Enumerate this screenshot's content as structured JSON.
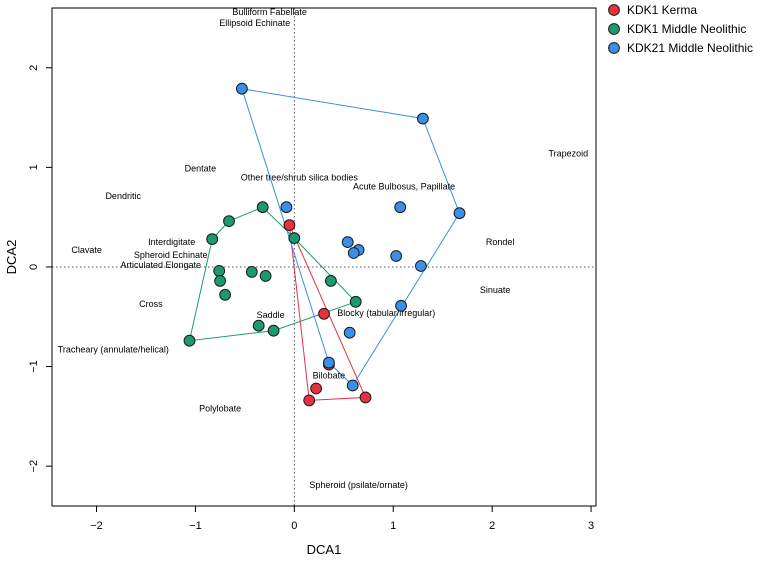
{
  "chart_data": {
    "type": "scatter",
    "title": "",
    "xlabel": "DCA1",
    "ylabel": "DCA2",
    "xlim": [
      -2.45,
      3.05
    ],
    "ylim": [
      -2.4,
      2.6
    ],
    "xticks": [
      -2,
      -1,
      0,
      1,
      2,
      3
    ],
    "yticks": [
      -2,
      -1,
      0,
      1,
      2
    ],
    "x_tick_labels": [
      "−2",
      "−1",
      "0",
      "1",
      "2",
      "3"
    ],
    "y_tick_labels": [
      "−2",
      "−1",
      "0",
      "1",
      "2"
    ],
    "reference_lines": {
      "x": 0,
      "y": 0
    },
    "legend_position": "top-right",
    "series": [
      {
        "name": "KDK1 Kerma",
        "color": "#E8303F",
        "points": [
          [
            -0.05,
            0.42
          ],
          [
            0.3,
            -0.47
          ],
          [
            0.35,
            -0.98
          ],
          [
            0.22,
            -1.22
          ],
          [
            0.15,
            -1.34
          ],
          [
            0.72,
            -1.31
          ]
        ],
        "hull": [
          [
            -0.05,
            0.42
          ],
          [
            0.72,
            -1.31
          ],
          [
            0.15,
            -1.34
          ]
        ]
      },
      {
        "name": "KDK1 Middle Neolithic",
        "color": "#1A9A70",
        "points": [
          [
            -0.32,
            0.6
          ],
          [
            -0.66,
            0.46
          ],
          [
            -0.83,
            0.28
          ],
          [
            0.0,
            0.29
          ],
          [
            -0.76,
            -0.04
          ],
          [
            -0.43,
            -0.05
          ],
          [
            -0.29,
            -0.09
          ],
          [
            -0.75,
            -0.14
          ],
          [
            -0.7,
            -0.28
          ],
          [
            0.37,
            -0.14
          ],
          [
            0.62,
            -0.35
          ],
          [
            -0.36,
            -0.59
          ],
          [
            -0.21,
            -0.64
          ],
          [
            -1.06,
            -0.74
          ]
        ],
        "hull": [
          [
            -0.66,
            0.46
          ],
          [
            -0.32,
            0.6
          ],
          [
            0.0,
            0.29
          ],
          [
            0.62,
            -0.35
          ],
          [
            -0.21,
            -0.64
          ],
          [
            -1.06,
            -0.74
          ],
          [
            -0.83,
            0.28
          ]
        ]
      },
      {
        "name": "KDK21 Middle Neolithic",
        "color": "#3A8FE8",
        "points": [
          [
            -0.53,
            1.79
          ],
          [
            1.3,
            1.49
          ],
          [
            -0.08,
            0.6
          ],
          [
            1.07,
            0.6
          ],
          [
            1.67,
            0.54
          ],
          [
            0.54,
            0.25
          ],
          [
            0.65,
            0.17
          ],
          [
            0.6,
            0.14
          ],
          [
            1.03,
            0.11
          ],
          [
            1.28,
            0.01
          ],
          [
            1.08,
            -0.39
          ],
          [
            0.56,
            -0.66
          ],
          [
            0.35,
            -0.96
          ],
          [
            0.59,
            -1.19
          ]
        ],
        "hull": [
          [
            -0.53,
            1.79
          ],
          [
            1.3,
            1.49
          ],
          [
            1.67,
            0.54
          ],
          [
            0.59,
            -1.19
          ],
          [
            0.35,
            -0.96
          ]
        ]
      }
    ],
    "annotations": [
      {
        "text": "Bulliform Fabellate",
        "x": -0.25,
        "y": 2.56
      },
      {
        "text": "Ellipsoid Echinate",
        "x": -0.4,
        "y": 2.45
      },
      {
        "text": "Trapezoid",
        "x": 2.77,
        "y": 1.14
      },
      {
        "text": "Dentate",
        "x": -0.95,
        "y": 0.99
      },
      {
        "text": "Other tree/shrub silica bodies",
        "x": 0.05,
        "y": 0.9
      },
      {
        "text": "Acute Bulbosus, Papillate",
        "x": 1.11,
        "y": 0.81
      },
      {
        "text": "Dendritic",
        "x": -1.73,
        "y": 0.71
      },
      {
        "text": "Interdigitate",
        "x": -1.24,
        "y": 0.25
      },
      {
        "text": "Rondel",
        "x": 2.08,
        "y": 0.25
      },
      {
        "text": "Clavate",
        "x": -2.1,
        "y": 0.17
      },
      {
        "text": "Spheroid Echinate",
        "x": -1.25,
        "y": 0.12
      },
      {
        "text": "Articulated Elongate",
        "x": -1.35,
        "y": 0.02
      },
      {
        "text": "Sinuate",
        "x": 2.03,
        "y": -0.23
      },
      {
        "text": "Cross",
        "x": -1.45,
        "y": -0.37
      },
      {
        "text": "Blocky (tabular/irregular)",
        "x": 0.93,
        "y": -0.46
      },
      {
        "text": "Saddle",
        "x": -0.24,
        "y": -0.48
      },
      {
        "text": "Tracheary (annulate/helical)",
        "x": -1.83,
        "y": -0.83
      },
      {
        "text": "Bilobate",
        "x": 0.35,
        "y": -1.09
      },
      {
        "text": "Polylobate",
        "x": -0.75,
        "y": -1.42
      },
      {
        "text": "Spheroid (psilate/ornate)",
        "x": 0.65,
        "y": -2.19
      }
    ]
  }
}
